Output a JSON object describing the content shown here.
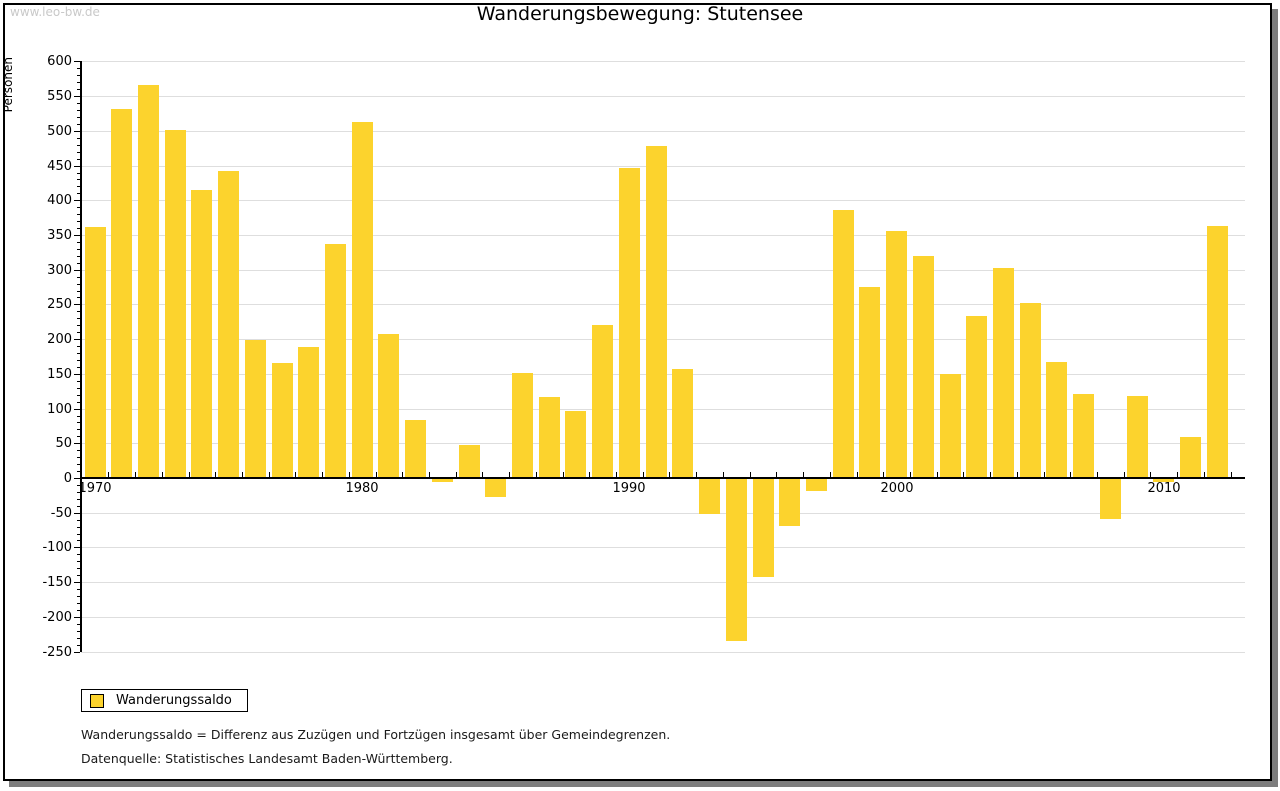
{
  "watermark": "www.leo-bw.de",
  "title": "Wanderungsbewegung: Stutensee",
  "legend": {
    "label": "Wanderungssaldo"
  },
  "footer": {
    "line1": "Wanderungssaldo = Differenz aus Zuzügen und Fortzügen insgesamt über Gemeindegrenzen.",
    "line2": "Datenquelle: Statistisches Landesamt Baden-Württemberg."
  },
  "chart_data": {
    "type": "bar",
    "title": "Wanderungsbewegung: Stutensee",
    "series_name": "Wanderungssaldo",
    "xlabel": "",
    "ylabel": "Personen",
    "ylim": [
      -250,
      600
    ],
    "yticks": [
      -250,
      -200,
      -150,
      -100,
      -50,
      0,
      50,
      100,
      150,
      200,
      250,
      300,
      350,
      400,
      450,
      500,
      550,
      600
    ],
    "x_decade_labels": [
      "1970",
      "1980",
      "1990",
      "2000",
      "2010"
    ],
    "grid": "horizontal",
    "legend_position": "bottom-left",
    "bar_color": "#fcd32d",
    "categories": [
      1970,
      1971,
      1972,
      1973,
      1974,
      1975,
      1976,
      1977,
      1978,
      1979,
      1980,
      1981,
      1982,
      1983,
      1984,
      1985,
      1986,
      1987,
      1988,
      1989,
      1990,
      1991,
      1992,
      1993,
      1994,
      1995,
      1996,
      1997,
      1998,
      1999,
      2000,
      2001,
      2002,
      2003,
      2004,
      2005,
      2006,
      2007,
      2008,
      2009,
      2010,
      2011,
      2012
    ],
    "values": [
      360,
      530,
      564,
      500,
      413,
      441,
      197,
      164,
      187,
      335,
      511,
      206,
      82,
      -4,
      46,
      -26,
      150,
      115,
      95,
      219,
      445,
      477,
      155,
      -50,
      -234,
      -141,
      -67,
      -17,
      385,
      274,
      354,
      318,
      148,
      232,
      301,
      250,
      166,
      120,
      -58,
      116,
      -5,
      57,
      362
    ]
  }
}
